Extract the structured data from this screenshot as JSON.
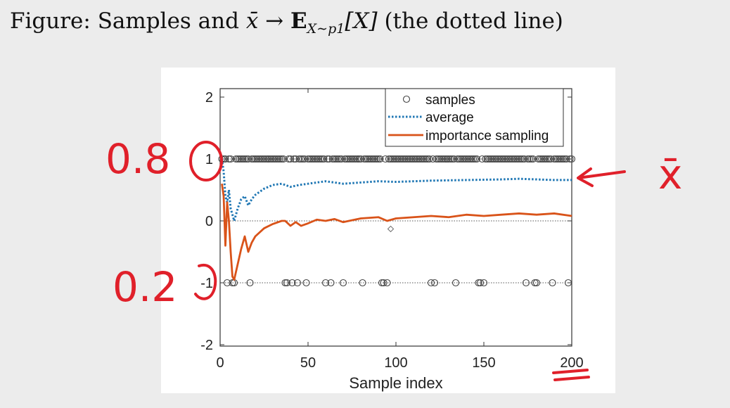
{
  "slide": {
    "title_prefix": "Figure: Samples and ",
    "title_xbar": "x̄",
    "title_arrow": " → ",
    "title_E": "E",
    "title_sub": "X∼p1",
    "title_bracket": "[X]",
    "title_suffix": " (the dotted line)"
  },
  "chart_data": {
    "type": "scatter+line",
    "xlabel": "Sample index",
    "ylabel": "",
    "xlim": [
      0,
      200
    ],
    "ylim": [
      -2,
      2.25
    ],
    "xticks": [
      0,
      50,
      100,
      150,
      200
    ],
    "yticks": [
      2,
      1,
      0,
      -1,
      -2
    ],
    "grid": false,
    "reference_lines": [
      1,
      0,
      -1
    ],
    "legend": {
      "placement": "top-right",
      "entries": [
        "samples",
        "average",
        "importance sampling"
      ]
    },
    "series": [
      {
        "name": "samples",
        "style": "markers",
        "color": "#444444",
        "points_at_plus1": [
          1,
          2,
          3,
          5,
          6,
          9,
          10,
          11,
          12,
          13,
          14,
          15,
          16,
          18,
          19,
          20,
          21,
          22,
          23,
          24,
          25,
          26,
          27,
          28,
          29,
          30,
          31,
          32,
          33,
          34,
          35,
          36,
          39,
          40,
          42,
          43,
          45,
          46,
          47,
          48,
          50,
          51,
          52,
          53,
          54,
          55,
          56,
          57,
          58,
          59,
          61,
          62,
          64,
          65,
          66,
          67,
          68,
          69,
          71,
          72,
          73,
          74,
          75,
          76,
          77,
          78,
          79,
          80,
          82,
          83,
          84,
          85,
          86,
          87,
          88,
          89,
          90,
          91,
          94,
          96,
          97,
          98,
          99,
          100,
          101,
          102,
          103,
          104,
          105,
          106,
          107,
          108,
          109,
          110,
          111,
          112,
          113,
          114,
          115,
          116,
          117,
          118,
          119,
          121,
          123,
          124,
          125,
          126,
          127,
          128,
          129,
          130,
          131,
          132,
          133,
          135,
          136,
          137,
          138,
          139,
          140,
          141,
          142,
          143,
          144,
          145,
          146,
          149,
          151,
          152,
          153,
          154,
          155,
          156,
          157,
          158,
          159,
          160,
          161,
          162,
          163,
          164,
          165,
          166,
          167,
          168,
          169,
          170,
          171,
          172,
          173,
          175,
          176,
          177,
          178,
          181,
          182,
          183,
          184,
          185,
          186,
          187,
          188,
          190,
          191,
          192,
          193,
          194,
          195,
          196,
          197,
          199,
          200
        ],
        "points_at_minus1": [
          4,
          7,
          8,
          17,
          37,
          38,
          41,
          44,
          49,
          60,
          63,
          70,
          81,
          92,
          93,
          95,
          120,
          122,
          134,
          147,
          148,
          150,
          174,
          179,
          180,
          189,
          198
        ]
      },
      {
        "name": "average",
        "style": "dotted",
        "color": "#1f77b4",
        "x": [
          1,
          2,
          3,
          4,
          5,
          6,
          7,
          8,
          10,
          12,
          14,
          16,
          18,
          20,
          25,
          30,
          35,
          40,
          45,
          50,
          60,
          70,
          80,
          90,
          100,
          120,
          140,
          160,
          170,
          180,
          190,
          200
        ],
        "y": [
          1.0,
          0.8,
          0.4,
          0.3,
          0.5,
          0.2,
          0.1,
          0.0,
          0.2,
          0.35,
          0.4,
          0.25,
          0.35,
          0.42,
          0.52,
          0.58,
          0.6,
          0.55,
          0.58,
          0.6,
          0.64,
          0.6,
          0.62,
          0.64,
          0.63,
          0.65,
          0.66,
          0.67,
          0.68,
          0.67,
          0.66,
          0.66
        ]
      },
      {
        "name": "importance sampling",
        "style": "solid",
        "color": "#d95319",
        "x": [
          1,
          2,
          3,
          4,
          5,
          6,
          7,
          8,
          10,
          12,
          14,
          16,
          18,
          20,
          25,
          30,
          35,
          37,
          40,
          43,
          46,
          50,
          55,
          60,
          65,
          70,
          80,
          90,
          95,
          100,
          110,
          120,
          130,
          140,
          150,
          160,
          170,
          180,
          190,
          200
        ],
        "y": [
          0.6,
          0.4,
          -0.4,
          0.3,
          0.0,
          -0.5,
          -0.9,
          -0.95,
          -0.7,
          -0.45,
          -0.25,
          -0.5,
          -0.35,
          -0.25,
          -0.12,
          -0.05,
          0.0,
          0.0,
          -0.08,
          -0.02,
          -0.08,
          -0.04,
          0.02,
          0.0,
          0.03,
          -0.02,
          0.04,
          0.06,
          0.0,
          0.04,
          0.06,
          0.08,
          0.06,
          0.1,
          0.08,
          0.1,
          0.12,
          0.1,
          0.12,
          0.08
        ]
      }
    ],
    "outlier_marker": {
      "x": 97,
      "y": -0.13
    }
  },
  "annotations": {
    "text_left_top": "0.8",
    "text_left_bottom": "0.2",
    "text_right": "x̄",
    "color": "#e0202a"
  }
}
